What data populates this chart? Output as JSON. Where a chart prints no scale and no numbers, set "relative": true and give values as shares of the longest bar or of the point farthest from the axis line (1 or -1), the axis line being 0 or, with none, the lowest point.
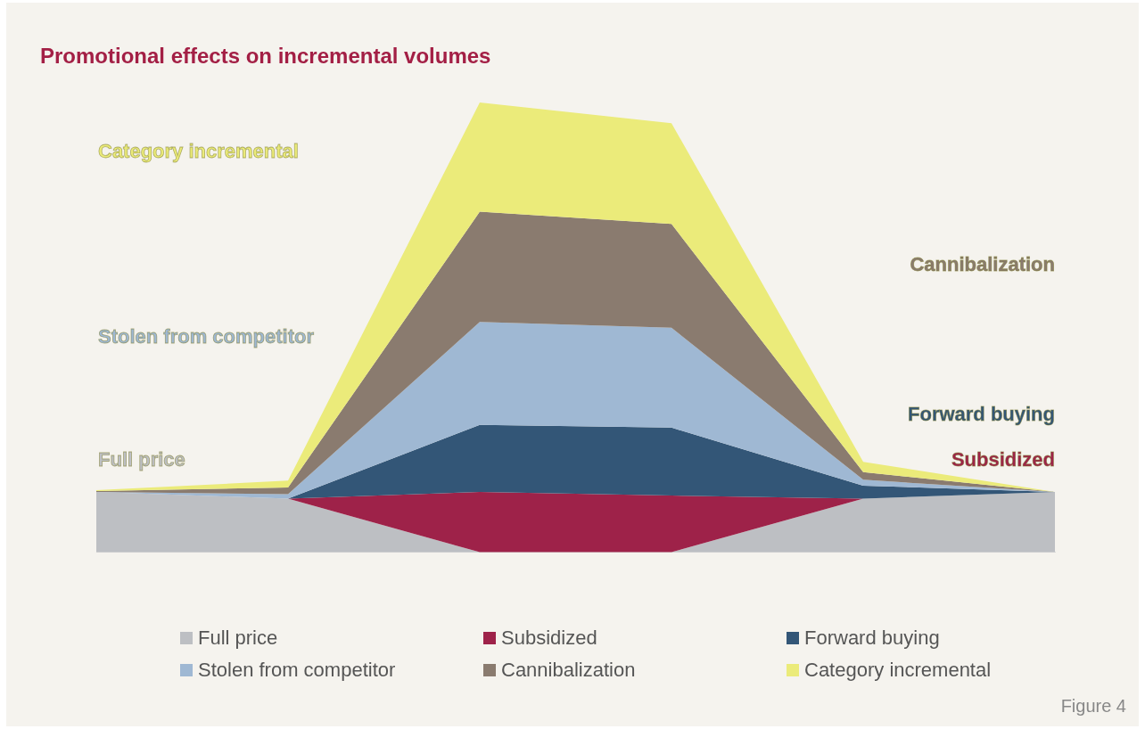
{
  "chart_data": {
    "type": "area",
    "title": "Promotional effects on incremental volumes",
    "categories": [
      null,
      null,
      null,
      null,
      null,
      null
    ],
    "relative": true,
    "stacked": true,
    "grid": false,
    "legend": "bottom",
    "series": [
      {
        "name": "Full price",
        "color": "#bdbfc3",
        "values": [
          0.134,
          0.119,
          0,
          0,
          0.119,
          0.134
        ]
      },
      {
        "name": "Subsidized",
        "color": "#9e2249",
        "values": [
          null,
          0,
          0.134,
          0.126,
          0,
          null
        ]
      },
      {
        "name": "Forward buying",
        "color": "#335677",
        "values": [
          null,
          0,
          0.149,
          0.151,
          0.029,
          0
        ]
      },
      {
        "name": "Stolen from competitor",
        "color": "#9fb8d3",
        "values": [
          0,
          0.01,
          0.229,
          0.222,
          0.013,
          0
        ]
      },
      {
        "name": "Cannibalization",
        "color": "#8a7b6f",
        "values": [
          0.002,
          0.015,
          0.245,
          0.231,
          0.017,
          0
        ]
      },
      {
        "name": "Category incremental",
        "color": "#ebeb7a",
        "values": [
          0.002,
          0.015,
          0.243,
          0.224,
          0.023,
          0
        ]
      }
    ],
    "annotations": [
      "Figure 4"
    ]
  }
}
